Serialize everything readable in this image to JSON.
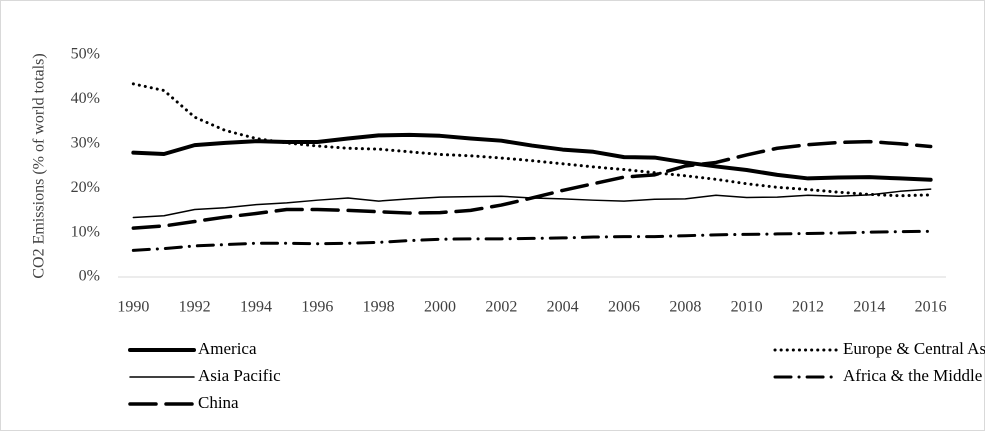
{
  "chart_data": {
    "type": "line",
    "y_label": "CO2 Emissions (% of world totals)",
    "x": [
      1990,
      1991,
      1992,
      1993,
      1994,
      1995,
      1996,
      1997,
      1998,
      1999,
      2000,
      2001,
      2002,
      2003,
      2004,
      2005,
      2006,
      2007,
      2008,
      2009,
      2010,
      2011,
      2012,
      2013,
      2014,
      2015,
      2016
    ],
    "xlim": [
      1989.5,
      2016.5
    ],
    "xticks": [
      1990,
      1992,
      1994,
      1996,
      1998,
      2000,
      2002,
      2004,
      2006,
      2008,
      2010,
      2012,
      2014,
      2016
    ],
    "ylim": [
      0,
      50
    ],
    "yticks": [
      {
        "value": 0,
        "label": "0%"
      },
      {
        "value": 10,
        "label": "10%"
      },
      {
        "value": 20,
        "label": "20%"
      },
      {
        "value": 30,
        "label": "30%"
      },
      {
        "value": 40,
        "label": "40%"
      },
      {
        "value": 50,
        "label": "50%"
      }
    ],
    "grid": false,
    "series": [
      {
        "name": "America",
        "color": "#000000",
        "style": "solid",
        "width": 4,
        "values": [
          28,
          27.7,
          29.7,
          30.2,
          30.6,
          30.4,
          30.4,
          31.2,
          31.9,
          32,
          31.8,
          31.2,
          30.7,
          29.6,
          28.7,
          28.2,
          27,
          26.9,
          25.8,
          24.9,
          24.1,
          23,
          22.2,
          22.4,
          22.5,
          22.2,
          21.9
        ]
      },
      {
        "name": "Europe & Central Asia",
        "color": "#000000",
        "style": "dot",
        "width": 3,
        "values": [
          43.5,
          42,
          36,
          33,
          31.2,
          30.2,
          29.5,
          29,
          28.8,
          28.2,
          27.6,
          27.3,
          26.8,
          26.2,
          25.5,
          24.8,
          24.2,
          23.5,
          22.8,
          22,
          21,
          20.2,
          19.7,
          19.1,
          18.6,
          18.3,
          18.5
        ]
      },
      {
        "name": "Asia Pacific",
        "color": "#000000",
        "style": "solid",
        "width": 1.5,
        "values": [
          13.4,
          13.8,
          15.2,
          15.6,
          16.3,
          16.7,
          17.3,
          17.8,
          17.1,
          17.6,
          18,
          18.1,
          18.2,
          17.8,
          17.6,
          17.3,
          17.1,
          17.5,
          17.6,
          18.4,
          17.9,
          18,
          18.4,
          18.2,
          18.5,
          19.3,
          19.8
        ]
      },
      {
        "name": "Africa & the Middle East",
        "color": "#000000",
        "style": "dash-dot",
        "width": 3,
        "values": [
          6,
          6.4,
          7,
          7.3,
          7.6,
          7.6,
          7.5,
          7.6,
          7.8,
          8.2,
          8.5,
          8.6,
          8.6,
          8.7,
          8.8,
          9,
          9.1,
          9.1,
          9.3,
          9.5,
          9.6,
          9.7,
          9.8,
          9.9,
          10.1,
          10.2,
          10.3
        ]
      },
      {
        "name": "China",
        "color": "#000000",
        "style": "long-dash",
        "width": 3.5,
        "values": [
          11,
          11.5,
          12.5,
          13.5,
          14.3,
          15.2,
          15.2,
          15,
          14.7,
          14.4,
          14.5,
          15,
          16.2,
          17.8,
          19.5,
          21,
          22.5,
          23,
          25,
          25.8,
          27.5,
          29,
          29.8,
          30.3,
          30.5,
          30,
          29.4
        ]
      }
    ]
  }
}
